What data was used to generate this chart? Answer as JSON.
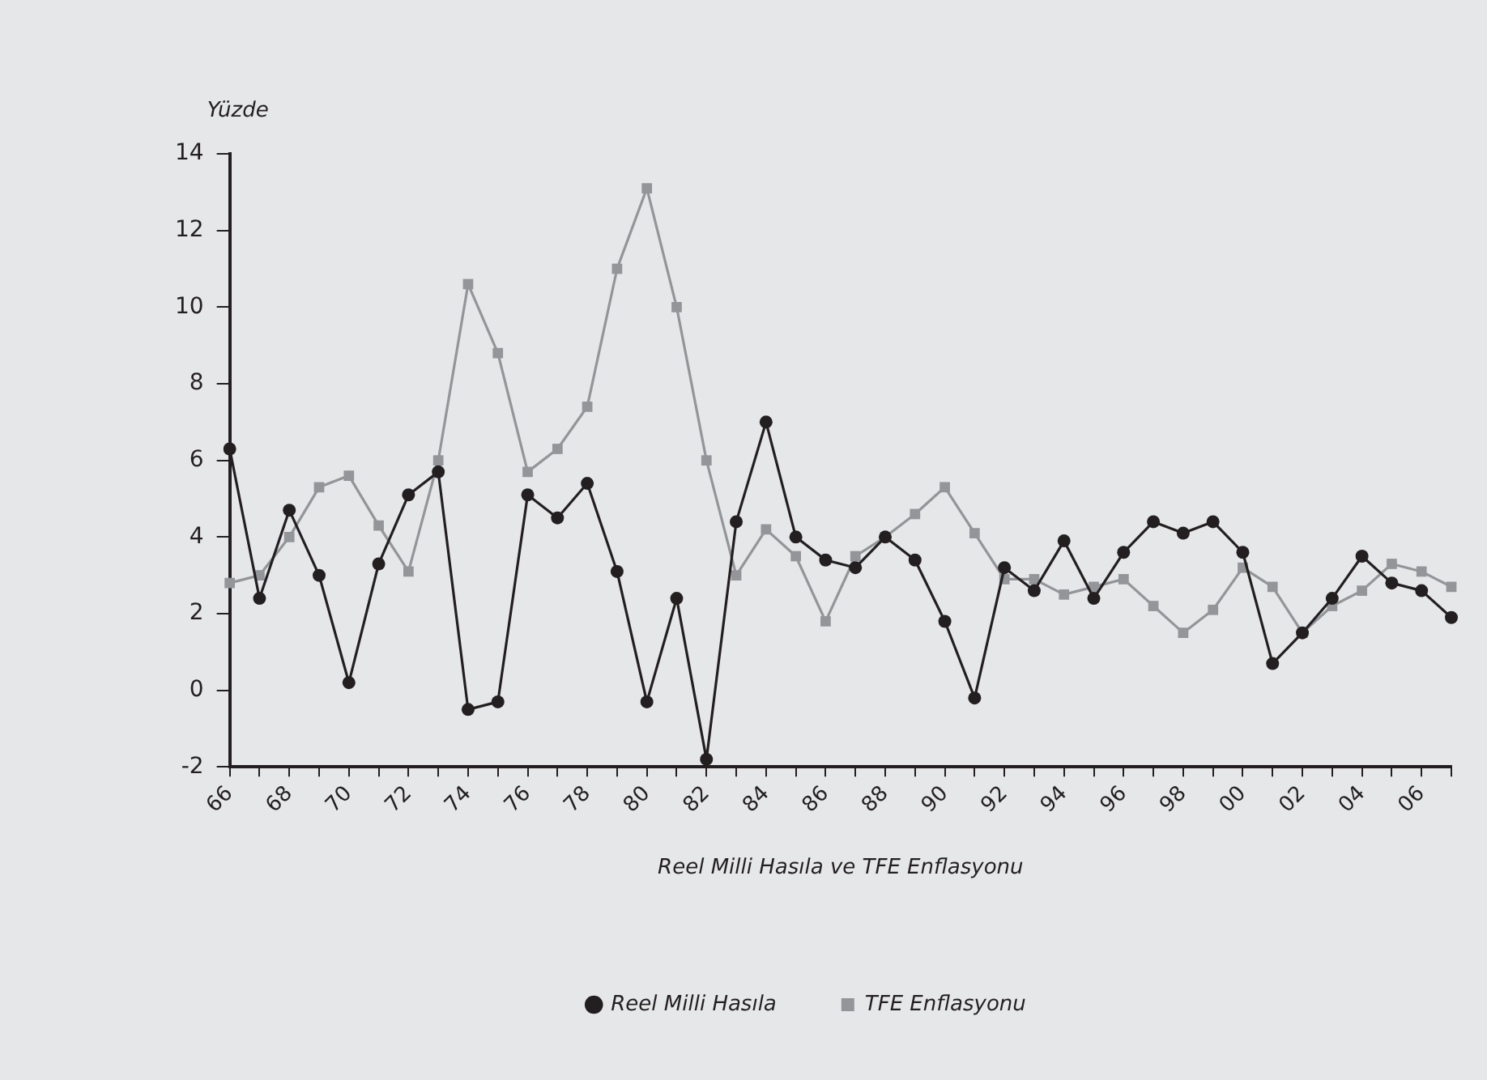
{
  "chart_data": {
    "type": "line",
    "ylabel": "Yüzde",
    "xlabel": "Reel Milli Hasıla ve TFE Enflasyonu",
    "categories": [
      "66",
      null,
      "68",
      null,
      "70",
      null,
      "72",
      null,
      "74",
      null,
      "76",
      null,
      "78",
      null,
      "80",
      null,
      "82",
      null,
      "84",
      null,
      "86",
      null,
      "88",
      null,
      "90",
      null,
      "92",
      null,
      "94",
      null,
      "96",
      null,
      "98",
      null,
      "00",
      null,
      "02",
      null,
      "04",
      null,
      "06",
      null
    ],
    "series": [
      {
        "name": "Reel Milli Hasıla",
        "color": "#231f20",
        "marker": "circle",
        "values": [
          6.3,
          2.4,
          4.7,
          3.0,
          0.2,
          3.3,
          5.1,
          5.7,
          -0.5,
          -0.3,
          5.1,
          4.5,
          5.4,
          3.1,
          -0.3,
          2.4,
          -1.8,
          4.4,
          7.0,
          4.0,
          3.4,
          3.2,
          4.0,
          3.4,
          1.8,
          -0.2,
          3.2,
          2.6,
          3.9,
          2.4,
          3.6,
          4.4,
          4.1,
          4.4,
          3.6,
          0.7,
          1.5,
          2.4,
          3.5,
          2.8,
          2.6,
          1.9
        ]
      },
      {
        "name": "TFE Enflasyonu",
        "color": "#939598",
        "marker": "square",
        "values": [
          2.8,
          3.0,
          4.0,
          5.3,
          5.6,
          4.3,
          3.1,
          6.0,
          10.6,
          8.8,
          5.7,
          6.3,
          7.4,
          11.0,
          13.1,
          10.0,
          6.0,
          3.0,
          4.2,
          3.5,
          1.8,
          3.5,
          4.0,
          4.6,
          5.3,
          4.1,
          2.9,
          2.9,
          2.5,
          2.7,
          2.9,
          2.2,
          1.5,
          2.1,
          3.2,
          2.7,
          1.5,
          2.2,
          2.6,
          3.3,
          3.1,
          2.7
        ]
      }
    ],
    "ylim": [
      -2,
      14
    ],
    "yticks": [
      -2,
      0,
      2,
      4,
      6,
      8,
      10,
      12,
      14
    ],
    "grid": false,
    "legend": "bottom",
    "line_style": "solid"
  }
}
